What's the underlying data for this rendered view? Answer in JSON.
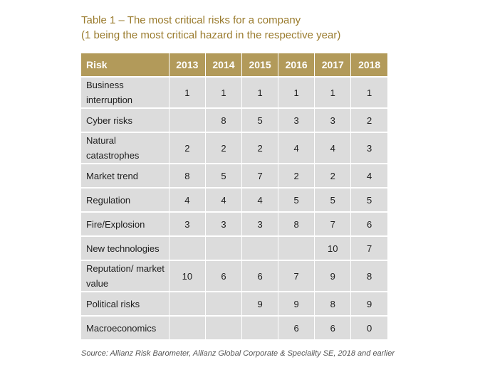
{
  "caption": {
    "line1": "Table 1 – The most critical risks for a company",
    "line2": "(1 being the most critical hazard in the respective year)"
  },
  "table": {
    "headers": [
      "Risk",
      "2013",
      "2014",
      "2015",
      "2016",
      "2017",
      "2018"
    ],
    "rows": [
      {
        "risk": "Business interruption",
        "values": [
          "1",
          "1",
          "1",
          "1",
          "1",
          "1"
        ]
      },
      {
        "risk": "Cyber risks",
        "values": [
          "",
          "8",
          "5",
          "3",
          "3",
          "2"
        ]
      },
      {
        "risk": "Natural catastrophes",
        "values": [
          "2",
          "2",
          "2",
          "4",
          "4",
          "3"
        ]
      },
      {
        "risk": "Market trend",
        "values": [
          "8",
          "5",
          "7",
          "2",
          "2",
          "4"
        ]
      },
      {
        "risk": "Regulation",
        "values": [
          "4",
          "4",
          "4",
          "5",
          "5",
          "5"
        ]
      },
      {
        "risk": "Fire/Explosion",
        "values": [
          "3",
          "3",
          "3",
          "8",
          "7",
          "6"
        ]
      },
      {
        "risk": "New technologies",
        "values": [
          "",
          "",
          "",
          "",
          "10",
          "7"
        ]
      },
      {
        "risk": "Reputation/ market value",
        "values": [
          "10",
          "6",
          "6",
          "7",
          "9",
          "8"
        ]
      },
      {
        "risk": "Political risks",
        "values": [
          "",
          "",
          "9",
          "9",
          "8",
          "9"
        ]
      },
      {
        "risk": "Macroeconomics",
        "values": [
          "",
          "",
          "",
          "6",
          "6",
          "0"
        ]
      }
    ]
  },
  "source": "Source: Allianz Risk Barometer, Allianz Global Corporate & Speciality SE, 2018 and earlier",
  "colors": {
    "caption_text": "#9a7b2d",
    "header_bg": "#b29a5a",
    "cell_bg": "#dcdcdc"
  }
}
